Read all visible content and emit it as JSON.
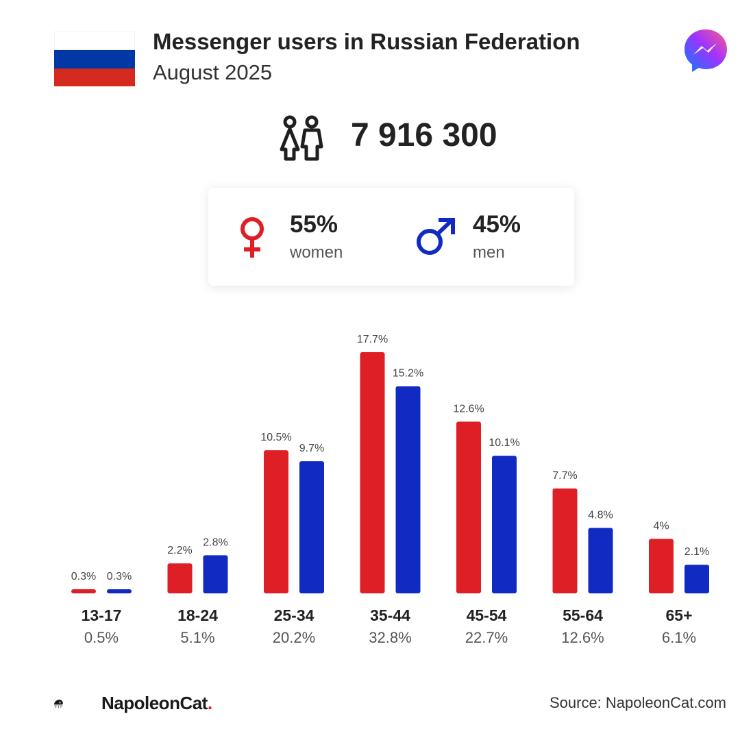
{
  "header": {
    "title": "Messenger users in Russian Federation",
    "subtitle": "August 2025"
  },
  "summary": {
    "total_users": "7 916 300",
    "women": {
      "percent": "55%",
      "label": "women"
    },
    "men": {
      "percent": "45%",
      "label": "men"
    }
  },
  "icons": {
    "flag": "russia-flag-icon",
    "app": "messenger-logo-icon",
    "users": "people-icon",
    "female": "female-symbol-icon",
    "male": "male-symbol-icon"
  },
  "colors": {
    "women": "#de1f26",
    "men": "#112bc2",
    "flag_white": "#ffffff",
    "flag_blue": "#0039a6",
    "flag_red": "#d52b1e"
  },
  "chart_data": {
    "type": "bar",
    "categories": [
      "13-17",
      "18-24",
      "25-34",
      "35-44",
      "45-54",
      "55-64",
      "65+"
    ],
    "category_totals": [
      "0.5%",
      "5.1%",
      "20.2%",
      "32.8%",
      "22.7%",
      "12.6%",
      "6.1%"
    ],
    "series": [
      {
        "name": "women",
        "values": [
          0.3,
          2.2,
          10.5,
          17.7,
          12.6,
          7.7,
          4
        ],
        "labels": [
          "0.3%",
          "2.2%",
          "10.5%",
          "17.7%",
          "12.6%",
          "7.7%",
          "4%"
        ]
      },
      {
        "name": "men",
        "values": [
          0.3,
          2.8,
          9.7,
          15.2,
          10.1,
          4.8,
          2.1
        ],
        "labels": [
          "0.3%",
          "2.8%",
          "9.7%",
          "15.2%",
          "10.1%",
          "4.8%",
          "2.1%"
        ]
      }
    ],
    "ylim": [
      0,
      17.7
    ],
    "grid": false,
    "legend": "none"
  },
  "footer": {
    "brand_name": "NapoleonCat",
    "brand_dot": ".",
    "source": "Source: NapoleonCat.com"
  }
}
